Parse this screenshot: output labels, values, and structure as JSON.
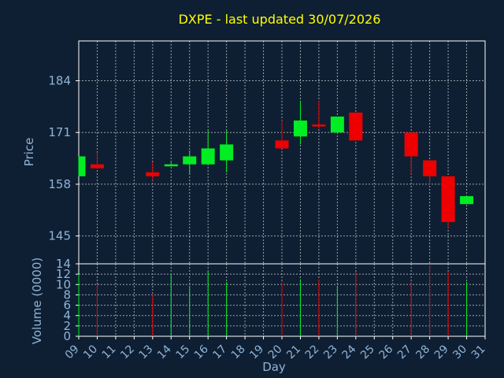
{
  "chart_data": {
    "type": "candlestick",
    "title": "DXPE - last updated 30/07/2026",
    "xlabel": "Day",
    "price_panel": {
      "ylabel": "Price",
      "yticks": [
        145,
        158,
        171,
        184
      ],
      "ylim": [
        138,
        194
      ],
      "grid": true
    },
    "volume_panel": {
      "ylabel": "Volume (0000)",
      "yticks": [
        0,
        2,
        4,
        6,
        8,
        10,
        12,
        14
      ],
      "ylim": [
        0,
        14
      ],
      "grid": true
    },
    "xticks": [
      "09",
      "10",
      "11",
      "12",
      "13",
      "14",
      "15",
      "16",
      "17",
      "18",
      "19",
      "20",
      "21",
      "22",
      "23",
      "24",
      "25",
      "26",
      "27",
      "28",
      "29",
      "30",
      "31"
    ],
    "xlim": [
      9,
      31
    ],
    "colors": {
      "background": "#0f1f33",
      "axis": "#ffffff",
      "grid": "#9aa0a8",
      "title": "#ffff00",
      "label": "#8fb4d8",
      "up": "#00ee22",
      "down": "#ee0000"
    },
    "candles": [
      {
        "day": 9,
        "open": 160,
        "high": 165,
        "low": 160,
        "close": 165,
        "volume": 12
      },
      {
        "day": 10,
        "open": 163,
        "high": 166,
        "low": 162,
        "close": 162,
        "volume": 10
      },
      {
        "day": 13,
        "open": 161,
        "high": 163.5,
        "low": 159,
        "close": 160,
        "volume": 8
      },
      {
        "day": 14,
        "open": 162.5,
        "high": 163.5,
        "low": 162.5,
        "close": 163,
        "volume": 12
      },
      {
        "day": 15,
        "open": 163,
        "high": 166.5,
        "low": 160.5,
        "close": 165,
        "volume": 9.5
      },
      {
        "day": 16,
        "open": 163,
        "high": 171.5,
        "low": 163,
        "close": 167,
        "volume": 12.5
      },
      {
        "day": 17,
        "open": 164,
        "high": 171.5,
        "low": 161,
        "close": 168,
        "volume": 10.5
      },
      {
        "day": 20,
        "open": 169,
        "high": 174,
        "low": 167,
        "close": 167,
        "volume": 10.5
      },
      {
        "day": 21,
        "open": 170,
        "high": 179,
        "low": 168,
        "close": 174,
        "volume": 11
      },
      {
        "day": 22,
        "open": 173,
        "high": 179,
        "low": 172,
        "close": 172.5,
        "volume": 11
      },
      {
        "day": 23,
        "open": 171,
        "high": 175,
        "low": 171,
        "close": 175,
        "volume": 9.5
      },
      {
        "day": 24,
        "open": 176,
        "high": 176,
        "low": 169,
        "close": 169,
        "volume": 12.5
      },
      {
        "day": 27,
        "open": 171,
        "high": 171,
        "low": 160.5,
        "close": 165,
        "volume": 10.5
      },
      {
        "day": 28,
        "open": 164,
        "high": 164,
        "low": 158,
        "close": 160,
        "volume": 14
      },
      {
        "day": 29,
        "open": 160,
        "high": 160,
        "low": 147,
        "close": 148.5,
        "volume": 12.5
      },
      {
        "day": 30,
        "open": 153,
        "high": 155,
        "low": 153,
        "close": 155,
        "volume": 10.5
      }
    ]
  }
}
